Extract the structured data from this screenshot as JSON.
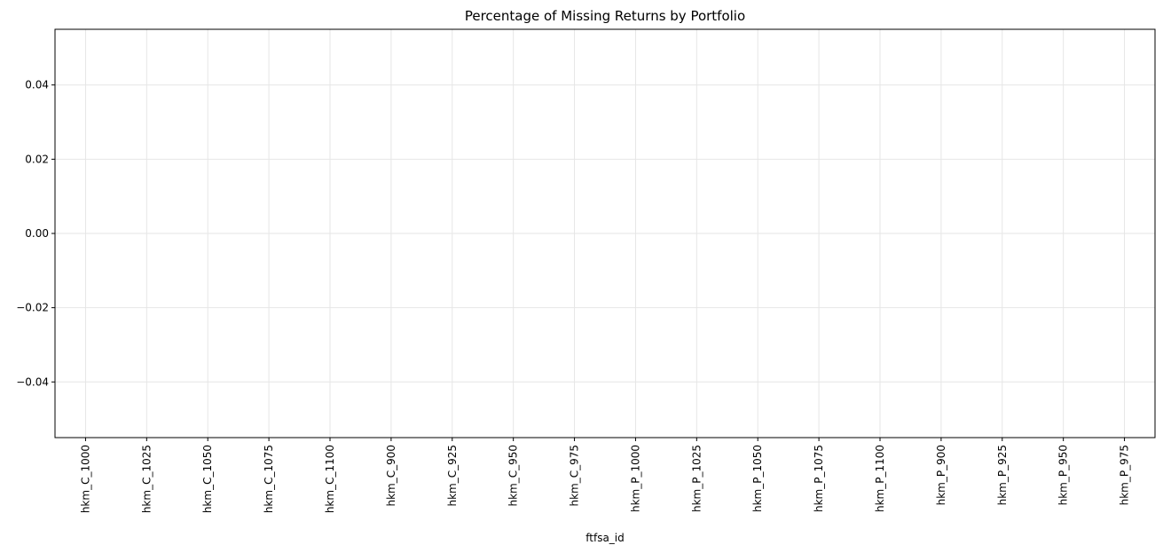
{
  "chart_data": {
    "type": "bar",
    "title": "Percentage of Missing Returns by Portfolio",
    "xlabel": "ftfsa_id",
    "ylabel": "",
    "categories": [
      "hkm_C_1000",
      "hkm_C_1025",
      "hkm_C_1050",
      "hkm_C_1075",
      "hkm_C_1100",
      "hkm_C_900",
      "hkm_C_925",
      "hkm_C_950",
      "hkm_C_975",
      "hkm_P_1000",
      "hkm_P_1025",
      "hkm_P_1050",
      "hkm_P_1075",
      "hkm_P_1100",
      "hkm_P_900",
      "hkm_P_925",
      "hkm_P_950",
      "hkm_P_975"
    ],
    "values": [
      0,
      0,
      0,
      0,
      0,
      0,
      0,
      0,
      0,
      0,
      0,
      0,
      0,
      0,
      0,
      0,
      0,
      0
    ],
    "ylim": [
      -0.055,
      0.055
    ],
    "yticks": [
      -0.04,
      -0.02,
      0.0,
      0.02,
      0.04
    ],
    "ytick_labels": [
      "−0.04",
      "−0.02",
      "0.00",
      "0.02",
      "0.04"
    ],
    "grid": true,
    "colors": {
      "grid": "#e6e6e6",
      "axis": "#000000",
      "bar": "#1f77b4"
    }
  }
}
